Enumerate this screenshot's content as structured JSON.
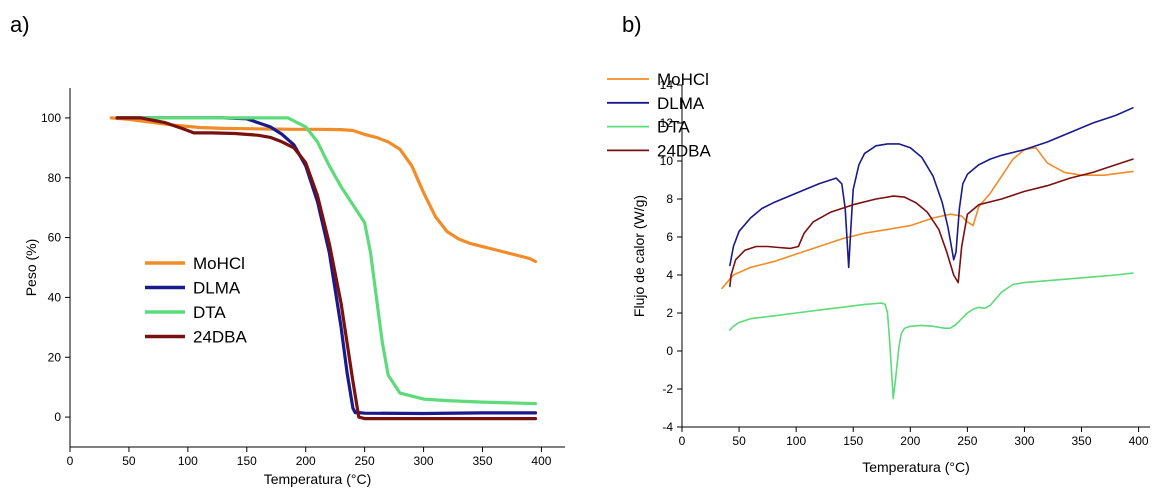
{
  "panels": {
    "a_label": "a)",
    "b_label": "b)"
  },
  "chart_data": [
    {
      "type": "line",
      "title": "",
      "xlabel": "Temperatura (°C)",
      "ylabel": "Peso (%)",
      "xlim": [
        0,
        420
      ],
      "ylim": [
        -10,
        110
      ],
      "xticks": [
        0,
        50,
        100,
        150,
        200,
        250,
        300,
        350,
        400
      ],
      "yticks": [
        0,
        20,
        40,
        60,
        80,
        100
      ],
      "grid": false,
      "legend_position": "lower-left",
      "series": [
        {
          "name": "MoHCl",
          "color": "#f28c28",
          "x": [
            35,
            50,
            70,
            90,
            110,
            130,
            150,
            170,
            190,
            210,
            230,
            240,
            250,
            260,
            270,
            280,
            290,
            300,
            310,
            320,
            330,
            340,
            350,
            360,
            370,
            380,
            390,
            395
          ],
          "y": [
            100,
            99.5,
            98.5,
            97.5,
            96.8,
            96.5,
            96.4,
            96.3,
            96.2,
            96.2,
            96.1,
            95.8,
            94.5,
            93.5,
            92,
            89.5,
            84,
            75,
            67,
            62,
            59.5,
            58,
            57,
            56,
            55,
            54,
            53,
            52
          ]
        },
        {
          "name": "DLMA",
          "color": "#1a1a8c",
          "x": [
            40,
            60,
            80,
            90,
            100,
            110,
            130,
            150,
            170,
            180,
            190,
            200,
            210,
            220,
            230,
            235,
            240,
            242,
            245,
            250,
            300,
            350,
            395
          ],
          "y": [
            100,
            100,
            100,
            100,
            100,
            100,
            100,
            99.7,
            97,
            94.5,
            91,
            84,
            72,
            55,
            30,
            15,
            3,
            1.5,
            1.5,
            1.3,
            1.2,
            1.4,
            1.4
          ]
        },
        {
          "name": "DTA",
          "color": "#5ddb7a",
          "x": [
            40,
            80,
            120,
            160,
            185,
            200,
            210,
            220,
            230,
            240,
            250,
            255,
            260,
            265,
            270,
            280,
            290,
            300,
            320,
            350,
            395
          ],
          "y": [
            100,
            100,
            100,
            100,
            100,
            97,
            92,
            84,
            77,
            71,
            65,
            55,
            40,
            25,
            14,
            8,
            7,
            6,
            5.5,
            5,
            4.5
          ]
        },
        {
          "name": "24DBA",
          "color": "#7a1010",
          "x": [
            40,
            60,
            80,
            95,
            105,
            120,
            140,
            160,
            170,
            180,
            190,
            200,
            210,
            220,
            230,
            240,
            245,
            250,
            300,
            350,
            395
          ],
          "y": [
            100,
            100,
            98.5,
            96.5,
            95,
            95,
            94.8,
            94.2,
            93.5,
            92,
            90,
            85,
            74,
            58,
            38,
            12,
            0,
            -0.5,
            -0.5,
            -0.5,
            -0.5
          ]
        }
      ]
    },
    {
      "type": "line",
      "title": "",
      "xlabel": "Temperatura (°C)",
      "ylabel": "Flujo de calor (W/g)",
      "xlim": [
        0,
        410
      ],
      "ylim": [
        -4,
        14
      ],
      "xticks": [
        0,
        50,
        100,
        150,
        200,
        250,
        300,
        350,
        400
      ],
      "yticks": [
        -4,
        -2,
        0,
        2,
        4,
        6,
        8,
        10,
        12,
        14
      ],
      "grid": false,
      "legend_position": "top-left",
      "series": [
        {
          "name": "MoHCl",
          "color": "#f28c28",
          "x": [
            35,
            45,
            60,
            80,
            100,
            120,
            140,
            160,
            180,
            200,
            220,
            235,
            245,
            250,
            255,
            260,
            270,
            280,
            290,
            300,
            310,
            320,
            335,
            350,
            370,
            395
          ],
          "y": [
            3.3,
            4.0,
            4.4,
            4.7,
            5.1,
            5.5,
            5.9,
            6.2,
            6.4,
            6.6,
            7.0,
            7.2,
            7.1,
            6.8,
            6.6,
            7.6,
            8.3,
            9.2,
            10.1,
            10.6,
            10.7,
            9.9,
            9.4,
            9.25,
            9.25,
            9.45
          ]
        },
        {
          "name": "DLMA",
          "color": "#1a1a8c",
          "x": [
            42,
            45,
            50,
            60,
            70,
            80,
            100,
            120,
            135,
            140,
            143,
            146,
            148,
            150,
            155,
            160,
            170,
            180,
            190,
            200,
            210,
            220,
            228,
            233,
            236,
            238,
            240,
            243,
            246,
            250,
            260,
            270,
            280,
            300,
            320,
            340,
            360,
            380,
            395
          ],
          "y": [
            4.5,
            5.5,
            6.3,
            7.0,
            7.5,
            7.8,
            8.3,
            8.8,
            9.1,
            8.8,
            7.5,
            4.4,
            6.5,
            8.5,
            9.8,
            10.4,
            10.8,
            10.9,
            10.9,
            10.7,
            10.2,
            9.2,
            7.8,
            6.5,
            5.5,
            4.8,
            5.2,
            7.5,
            8.8,
            9.3,
            9.8,
            10.1,
            10.3,
            10.6,
            11.0,
            11.5,
            12.0,
            12.4,
            12.8
          ]
        },
        {
          "name": "DTA",
          "color": "#5ddb7a",
          "x": [
            42,
            45,
            50,
            60,
            80,
            100,
            120,
            140,
            160,
            170,
            175,
            178,
            180,
            182,
            185,
            187,
            190,
            192,
            195,
            200,
            210,
            220,
            230,
            235,
            240,
            245,
            250,
            255,
            260,
            265,
            270,
            280,
            290,
            300,
            320,
            340,
            360,
            380,
            395
          ],
          "y": [
            1.1,
            1.3,
            1.5,
            1.7,
            1.85,
            2.0,
            2.15,
            2.3,
            2.45,
            2.5,
            2.52,
            2.45,
            2.0,
            0.5,
            -2.5,
            -1.5,
            0.2,
            0.9,
            1.2,
            1.3,
            1.35,
            1.3,
            1.2,
            1.2,
            1.4,
            1.7,
            2.0,
            2.2,
            2.3,
            2.25,
            2.4,
            3.1,
            3.5,
            3.6,
            3.7,
            3.8,
            3.9,
            4.0,
            4.1
          ]
        },
        {
          "name": "24DBA",
          "color": "#7a1010",
          "x": [
            42,
            43,
            47,
            55,
            65,
            75,
            85,
            95,
            102,
            107,
            115,
            130,
            150,
            170,
            185,
            195,
            205,
            215,
            225,
            232,
            238,
            242,
            245,
            250,
            260,
            280,
            300,
            320,
            340,
            360,
            380,
            395
          ],
          "y": [
            3.4,
            4.0,
            4.8,
            5.3,
            5.5,
            5.5,
            5.45,
            5.4,
            5.5,
            6.2,
            6.8,
            7.3,
            7.7,
            8.0,
            8.15,
            8.1,
            7.8,
            7.3,
            6.4,
            5.2,
            4.0,
            3.6,
            5.5,
            7.2,
            7.7,
            8.0,
            8.4,
            8.7,
            9.1,
            9.4,
            9.8,
            10.1
          ]
        }
      ]
    }
  ]
}
